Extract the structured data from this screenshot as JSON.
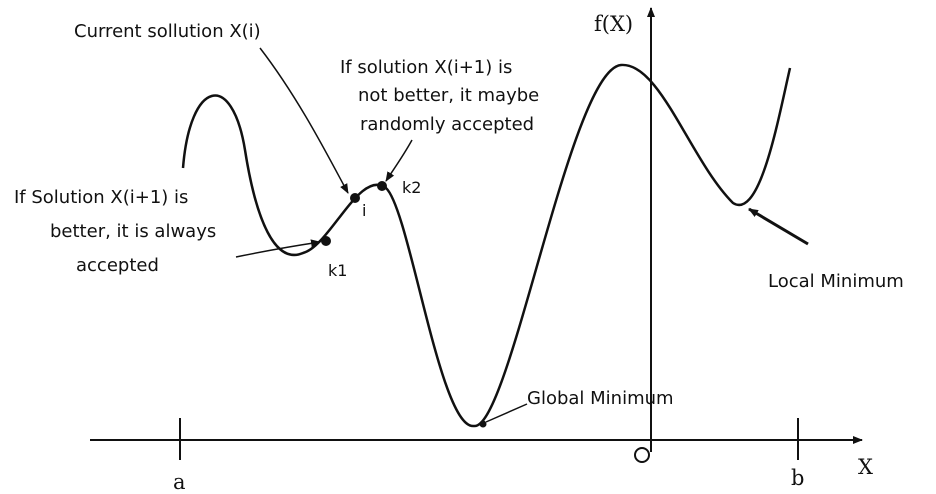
{
  "diagram": {
    "y_axis_label": "f(X)",
    "x_axis_label": "X",
    "origin_label": "O",
    "tick_a": "a",
    "tick_b": "b",
    "points": {
      "k1": "k1",
      "i": "i",
      "k2": "k2"
    },
    "annotations": {
      "current_solution": "Current sollution X(i)",
      "not_better": [
        "If solution X(i+1) is",
        "not better, it maybe",
        "randomly accepted"
      ],
      "better": [
        "If Solution X(i+1) is",
        "better, it is always",
        "accepted"
      ],
      "local_minimum": "Local Minimum",
      "global_minimum": "Global Minimum"
    }
  }
}
